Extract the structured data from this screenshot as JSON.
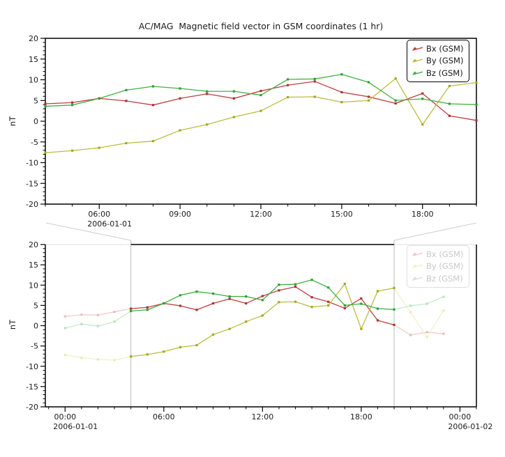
{
  "chart_data": {
    "type": "line",
    "title": "AC/MAG  Magnetic field vector in GSM coordinates (1 hr)",
    "xlabel": "",
    "ylabel": "nT",
    "ylim": [
      -20,
      20
    ],
    "yticks": [
      20,
      15,
      10,
      5,
      0,
      -5,
      -10,
      -15,
      -20
    ],
    "ytick_minor_step": 1,
    "grid": false,
    "legend_position": "top-right",
    "hours": [
      0,
      1,
      2,
      3,
      4,
      5,
      6,
      7,
      8,
      9,
      10,
      11,
      12,
      13,
      14,
      15,
      16,
      17,
      18,
      19,
      20,
      21,
      22,
      23
    ],
    "series": [
      {
        "name": "Bx (GSM)",
        "color": "#bf3e3e",
        "marker_color": "#a83232",
        "faded_color": "#f2c9c9",
        "faded_marker_color": "#edbcbc",
        "values": [
          2.3,
          2.7,
          2.6,
          3.4,
          4.2,
          4.5,
          5.5,
          4.9,
          3.9,
          5.5,
          6.6,
          5.5,
          7.3,
          8.7,
          9.6,
          7.0,
          5.9,
          4.3,
          6.7,
          1.3,
          0.2,
          -2.3,
          -1.6,
          -2.0
        ]
      },
      {
        "name": "By (GSM)",
        "color": "#bcbc40",
        "marker_color": "#a6a61e",
        "faded_color": "#f0f0c8",
        "faded_marker_color": "#e9e9b4",
        "values": [
          -7.2,
          -7.9,
          -8.3,
          -8.5,
          -7.6,
          -7.1,
          -6.4,
          -5.3,
          -4.8,
          -2.2,
          -0.8,
          1.0,
          2.5,
          5.8,
          5.9,
          4.6,
          5.0,
          10.3,
          -0.8,
          8.5,
          9.3,
          3.3,
          -2.8,
          3.7
        ]
      },
      {
        "name": "Bz (GSM)",
        "color": "#43b043",
        "marker_color": "#2f9e33",
        "faded_color": "#c9eac9",
        "faded_marker_color": "#b6e3b6",
        "values": [
          -0.6,
          0.4,
          -0.1,
          1.0,
          3.6,
          3.9,
          5.5,
          7.5,
          8.4,
          7.9,
          7.2,
          7.2,
          6.3,
          10.1,
          10.2,
          11.3,
          9.4,
          5.0,
          5.4,
          4.2,
          4.0,
          4.9,
          5.4,
          7.1
        ]
      }
    ],
    "panels": {
      "top": {
        "x_range_hours": [
          4,
          20
        ],
        "xticks": [
          {
            "hour": 6,
            "label": "06:00"
          },
          {
            "hour": 9,
            "label": "09:00"
          },
          {
            "hour": 12,
            "label": "12:00"
          },
          {
            "hour": 15,
            "label": "15:00"
          },
          {
            "hour": 18,
            "label": "18:00"
          }
        ],
        "date_labels": [
          {
            "text": "2006-01-01",
            "anchor_hour": 6
          }
        ]
      },
      "bottom": {
        "x_range_hours": [
          -1.2,
          25.0
        ],
        "highlight_hours": [
          4,
          20
        ],
        "xticks": [
          {
            "hour": 0,
            "label": "00:00"
          },
          {
            "hour": 6,
            "label": "06:00"
          },
          {
            "hour": 12,
            "label": "12:00"
          },
          {
            "hour": 18,
            "label": "18:00"
          },
          {
            "hour": 24,
            "label": "00:00"
          }
        ],
        "date_labels": [
          {
            "text": "2006-01-01",
            "anchor_hour": 0
          },
          {
            "text": "2006-01-02",
            "anchor_hour": 24
          }
        ]
      }
    }
  }
}
